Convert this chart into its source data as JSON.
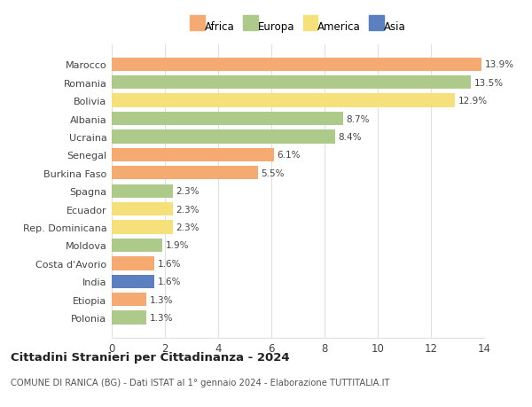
{
  "countries": [
    "Polonia",
    "Etiopia",
    "India",
    "Costa d'Avorio",
    "Moldova",
    "Rep. Dominicana",
    "Ecuador",
    "Spagna",
    "Burkina Faso",
    "Senegal",
    "Ucraina",
    "Albania",
    "Bolivia",
    "Romania",
    "Marocco"
  ],
  "values": [
    1.3,
    1.3,
    1.6,
    1.6,
    1.9,
    2.3,
    2.3,
    2.3,
    5.5,
    6.1,
    8.4,
    8.7,
    12.9,
    13.5,
    13.9
  ],
  "continents": [
    "Europa",
    "Africa",
    "Asia",
    "Africa",
    "Europa",
    "America",
    "America",
    "Europa",
    "Africa",
    "Africa",
    "Europa",
    "Europa",
    "America",
    "Europa",
    "Africa"
  ],
  "colors": {
    "Africa": "#F5AA72",
    "Europa": "#AECA8A",
    "America": "#F5E07A",
    "Asia": "#5B7FBF"
  },
  "legend_order": [
    "Africa",
    "Europa",
    "America",
    "Asia"
  ],
  "title": "Cittadini Stranieri per Cittadinanza - 2024",
  "subtitle": "COMUNE DI RANICA (BG) - Dati ISTAT al 1° gennaio 2024 - Elaborazione TUTTITALIA.IT",
  "xlim": [
    0,
    14
  ],
  "xticks": [
    0,
    2,
    4,
    6,
    8,
    10,
    12,
    14
  ],
  "bg_color": "#ffffff",
  "grid_color": "#e0e0e0",
  "bar_height": 0.75
}
